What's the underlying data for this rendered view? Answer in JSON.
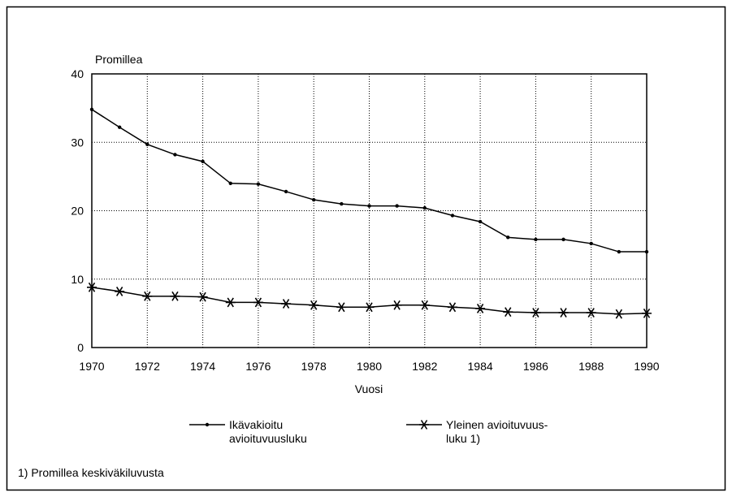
{
  "chart_data": {
    "type": "line",
    "y_axis_label": "Promillea",
    "x_axis_label": "Vuosi",
    "footnote": "1) Promillea keskiväkiluvusta",
    "x": [
      1970,
      1971,
      1972,
      1973,
      1974,
      1975,
      1976,
      1977,
      1978,
      1979,
      1980,
      1981,
      1982,
      1983,
      1984,
      1985,
      1986,
      1987,
      1988,
      1989,
      1990
    ],
    "series": [
      {
        "name": "Ikävakioitu\navioituvuusluku",
        "color": "#000000",
        "marker": "dot",
        "values": [
          34.8,
          32.2,
          29.7,
          28.2,
          27.2,
          24.0,
          23.9,
          22.8,
          21.6,
          21.0,
          20.7,
          20.7,
          20.4,
          19.3,
          18.4,
          16.1,
          15.8,
          15.8,
          15.2,
          14.0,
          14.0
        ]
      },
      {
        "name": "Yleinen avioituvuus-\nluku 1)",
        "color": "#000000",
        "marker": "star",
        "values": [
          8.8,
          8.2,
          7.5,
          7.5,
          7.4,
          6.6,
          6.6,
          6.4,
          6.2,
          5.9,
          5.9,
          6.2,
          6.2,
          5.9,
          5.7,
          5.2,
          5.1,
          5.1,
          5.1,
          4.9,
          5.0
        ]
      }
    ],
    "xlim": [
      1970,
      1990
    ],
    "xticks": [
      1970,
      1972,
      1974,
      1976,
      1978,
      1980,
      1982,
      1984,
      1986,
      1988,
      1990
    ],
    "ylim": [
      0,
      40
    ],
    "yticks": [
      0,
      10,
      20,
      30,
      40
    ],
    "grid": true,
    "legend": "bottom"
  }
}
